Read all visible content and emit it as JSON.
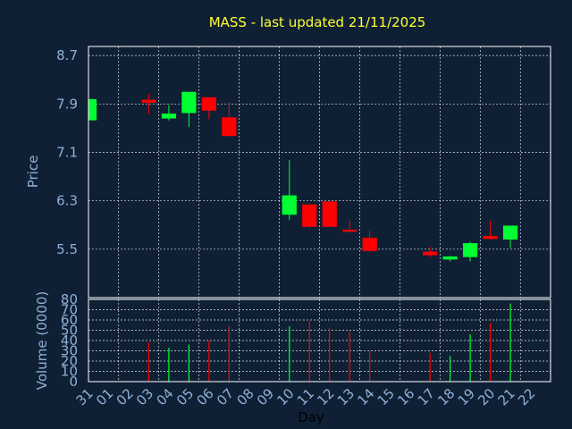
{
  "chart_data": {
    "type": "candlestick",
    "title": "MASS - last updated 21/11/2025",
    "xlabel": "Day",
    "price_panel": {
      "ylabel": "Price",
      "ylim": [
        4.7,
        8.85
      ],
      "yticks": [
        "8.7",
        "7.9",
        "7.1",
        "6.3",
        "5.5"
      ],
      "ytick_values": [
        8.7,
        7.9,
        7.1,
        6.3,
        5.5
      ]
    },
    "volume_panel": {
      "ylabel": "Volume (0000)",
      "ylim": [
        0,
        80
      ],
      "yticks": [
        "80",
        "70",
        "60",
        "50",
        "40",
        "30",
        "20",
        "10",
        "0"
      ],
      "ytick_values": [
        80,
        70,
        60,
        50,
        40,
        30,
        20,
        10,
        0
      ]
    },
    "x_ticks": [
      "31",
      "01",
      "02",
      "03",
      "04",
      "05",
      "06",
      "07",
      "08",
      "09",
      "10",
      "11",
      "12",
      "13",
      "14",
      "15",
      "16",
      "17",
      "18",
      "19",
      "20",
      "21",
      "22"
    ],
    "candles": [
      {
        "x": 0,
        "open": 7.63,
        "high": 7.98,
        "low": 7.63,
        "close": 7.98,
        "volume": 0,
        "direction": "up"
      },
      {
        "x": 3,
        "open": 7.97,
        "high": 8.07,
        "low": 7.73,
        "close": 7.92,
        "volume": 38,
        "direction": "down"
      },
      {
        "x": 4,
        "open": 7.66,
        "high": 7.88,
        "low": 7.63,
        "close": 7.74,
        "volume": 33,
        "direction": "up"
      },
      {
        "x": 5,
        "open": 7.75,
        "high": 8.1,
        "low": 7.52,
        "close": 8.1,
        "volume": 36,
        "direction": "up"
      },
      {
        "x": 6,
        "open": 8.01,
        "high": 8.01,
        "low": 7.65,
        "close": 7.79,
        "volume": 40,
        "direction": "down"
      },
      {
        "x": 7,
        "open": 7.68,
        "high": 7.93,
        "low": 7.37,
        "close": 7.37,
        "volume": 54,
        "direction": "down"
      },
      {
        "x": 10,
        "open": 6.07,
        "high": 6.97,
        "low": 5.98,
        "close": 6.39,
        "volume": 54,
        "direction": "up"
      },
      {
        "x": 11,
        "open": 6.24,
        "high": 6.24,
        "low": 5.85,
        "close": 5.87,
        "volume": 59,
        "direction": "down"
      },
      {
        "x": 12,
        "open": 6.29,
        "high": 6.29,
        "low": 5.87,
        "close": 5.87,
        "volume": 52,
        "direction": "down"
      },
      {
        "x": 13,
        "open": 5.82,
        "high": 5.97,
        "low": 5.77,
        "close": 5.79,
        "volume": 49,
        "direction": "down"
      },
      {
        "x": 14,
        "open": 5.69,
        "high": 5.8,
        "low": 5.47,
        "close": 5.47,
        "volume": 30,
        "direction": "down"
      },
      {
        "x": 17,
        "open": 5.46,
        "high": 5.54,
        "low": 5.37,
        "close": 5.4,
        "volume": 28,
        "direction": "down"
      },
      {
        "x": 18,
        "open": 5.33,
        "high": 5.39,
        "low": 5.3,
        "close": 5.38,
        "volume": 25,
        "direction": "up"
      },
      {
        "x": 19,
        "open": 5.37,
        "high": 5.62,
        "low": 5.3,
        "close": 5.6,
        "volume": 46,
        "direction": "up"
      },
      {
        "x": 20,
        "open": 5.72,
        "high": 5.97,
        "low": 5.66,
        "close": 5.67,
        "volume": 57,
        "direction": "down"
      },
      {
        "x": 21,
        "open": 5.66,
        "high": 5.89,
        "low": 5.52,
        "close": 5.89,
        "volume": 76,
        "direction": "up"
      }
    ],
    "grid": true,
    "colors": {
      "background": "#0f2035",
      "plot_background": "#0f2035",
      "up": "#00ff33",
      "down": "#ff0000",
      "title": "#ffff33",
      "axis_text": "#8fb0d8",
      "xlabel_text": "#000000",
      "frame": "#ffffff",
      "grid": "#ffffff"
    }
  }
}
